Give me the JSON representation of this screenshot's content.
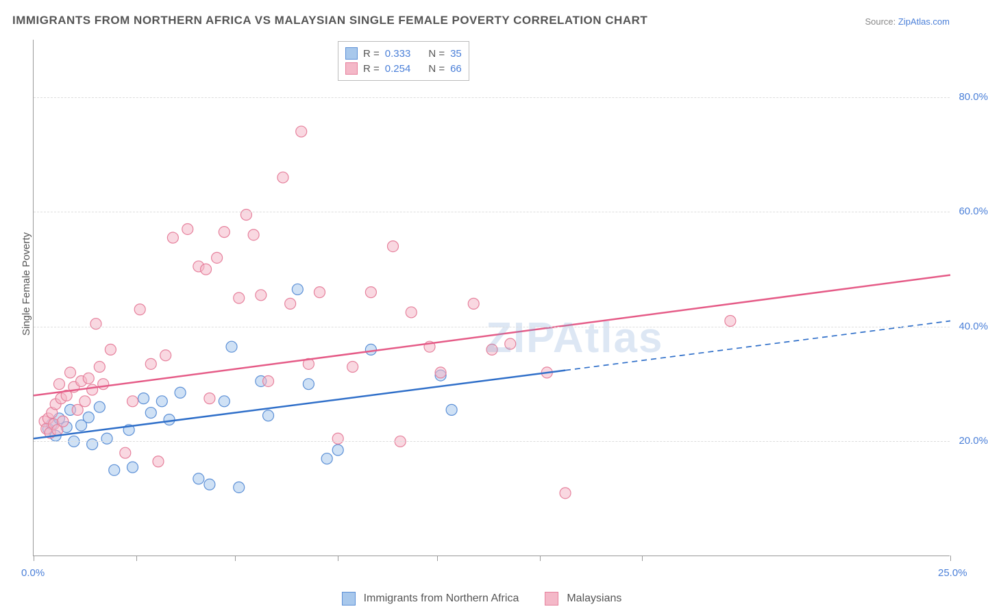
{
  "title": "IMMIGRANTS FROM NORTHERN AFRICA VS MALAYSIAN SINGLE FEMALE POVERTY CORRELATION CHART",
  "source_prefix": "Source: ",
  "source_name": "ZipAtlas.com",
  "y_axis_label": "Single Female Poverty",
  "watermark": "ZIPAtlas",
  "chart": {
    "type": "scatter",
    "xlim": [
      0,
      25
    ],
    "ylim": [
      0,
      90
    ],
    "x_ticks": [
      0,
      2.8,
      5.5,
      8.3,
      11,
      13.8,
      16.6,
      25
    ],
    "x_tick_labels_shown": {
      "0": "0.0%",
      "25": "25.0%"
    },
    "y_ticks": [
      20,
      40,
      60,
      80
    ],
    "y_tick_labels": {
      "20": "20.0%",
      "40": "40.0%",
      "60": "60.0%",
      "80": "80.0%"
    },
    "grid_color": "#dddddd",
    "axis_color": "#999999",
    "tick_label_color": "#4a7fd8",
    "background_color": "#ffffff",
    "marker_radius": 8,
    "marker_opacity": 0.55,
    "series": [
      {
        "id": "northern_africa",
        "label": "Immigrants from Northern Africa",
        "color_fill": "#a8c8ec",
        "color_stroke": "#5b8fd6",
        "R": 0.333,
        "N": 35,
        "trend": {
          "x1": 0,
          "y1": 20.5,
          "x2": 25,
          "y2": 41,
          "solid_until_x": 14.5,
          "color": "#2f6fc9",
          "width": 2.5
        },
        "points": [
          [
            0.4,
            22.2
          ],
          [
            0.5,
            23.0
          ],
          [
            0.6,
            21.0
          ],
          [
            0.7,
            24.0
          ],
          [
            0.9,
            22.5
          ],
          [
            1.0,
            25.5
          ],
          [
            1.1,
            20.0
          ],
          [
            1.3,
            22.8
          ],
          [
            1.5,
            24.2
          ],
          [
            1.6,
            19.5
          ],
          [
            1.8,
            26.0
          ],
          [
            2.0,
            20.5
          ],
          [
            2.2,
            15.0
          ],
          [
            2.6,
            22.0
          ],
          [
            2.7,
            15.5
          ],
          [
            3.0,
            27.5
          ],
          [
            3.2,
            25.0
          ],
          [
            3.5,
            27.0
          ],
          [
            3.7,
            23.8
          ],
          [
            4.0,
            28.5
          ],
          [
            4.5,
            13.5
          ],
          [
            4.8,
            12.5
          ],
          [
            5.2,
            27.0
          ],
          [
            5.4,
            36.5
          ],
          [
            5.6,
            12.0
          ],
          [
            6.2,
            30.5
          ],
          [
            6.4,
            24.5
          ],
          [
            7.2,
            46.5
          ],
          [
            7.5,
            30.0
          ],
          [
            8.0,
            17.0
          ],
          [
            8.3,
            18.5
          ],
          [
            9.2,
            36.0
          ],
          [
            11.1,
            31.5
          ],
          [
            11.4,
            25.5
          ]
        ]
      },
      {
        "id": "malaysians",
        "label": "Malaysians",
        "color_fill": "#f4b8c8",
        "color_stroke": "#e6809c",
        "R": 0.254,
        "N": 66,
        "trend": {
          "x1": 0,
          "y1": 28,
          "x2": 25,
          "y2": 49,
          "solid_until_x": 25,
          "color": "#e55b87",
          "width": 2.5
        },
        "points": [
          [
            0.3,
            23.5
          ],
          [
            0.35,
            22.2
          ],
          [
            0.4,
            24.0
          ],
          [
            0.45,
            21.5
          ],
          [
            0.5,
            25.0
          ],
          [
            0.55,
            23.0
          ],
          [
            0.6,
            26.5
          ],
          [
            0.65,
            22.0
          ],
          [
            0.7,
            30.0
          ],
          [
            0.75,
            27.5
          ],
          [
            0.8,
            23.5
          ],
          [
            0.9,
            28.0
          ],
          [
            1.0,
            32.0
          ],
          [
            1.1,
            29.5
          ],
          [
            1.2,
            25.5
          ],
          [
            1.3,
            30.5
          ],
          [
            1.4,
            27.0
          ],
          [
            1.5,
            31.0
          ],
          [
            1.6,
            29.0
          ],
          [
            1.7,
            40.5
          ],
          [
            1.8,
            33.0
          ],
          [
            1.9,
            30.0
          ],
          [
            2.1,
            36.0
          ],
          [
            2.5,
            18.0
          ],
          [
            2.7,
            27.0
          ],
          [
            2.9,
            43.0
          ],
          [
            3.2,
            33.5
          ],
          [
            3.4,
            16.5
          ],
          [
            3.6,
            35.0
          ],
          [
            3.8,
            55.5
          ],
          [
            4.2,
            57.0
          ],
          [
            4.5,
            50.5
          ],
          [
            4.7,
            50.0
          ],
          [
            4.8,
            27.5
          ],
          [
            5.0,
            52.0
          ],
          [
            5.2,
            56.5
          ],
          [
            5.6,
            45.0
          ],
          [
            5.8,
            59.5
          ],
          [
            6.0,
            56.0
          ],
          [
            6.2,
            45.5
          ],
          [
            6.4,
            30.5
          ],
          [
            6.8,
            66.0
          ],
          [
            7.0,
            44.0
          ],
          [
            7.3,
            74.0
          ],
          [
            7.5,
            33.5
          ],
          [
            7.8,
            46.0
          ],
          [
            8.3,
            20.5
          ],
          [
            8.7,
            33.0
          ],
          [
            9.2,
            46.0
          ],
          [
            9.8,
            54.0
          ],
          [
            10.0,
            20.0
          ],
          [
            10.3,
            42.5
          ],
          [
            10.8,
            36.5
          ],
          [
            11.1,
            32.0
          ],
          [
            12.0,
            44.0
          ],
          [
            12.5,
            36.0
          ],
          [
            13.0,
            37.0
          ],
          [
            14.0,
            32.0
          ],
          [
            14.5,
            11.0
          ],
          [
            19.0,
            41.0
          ]
        ]
      }
    ]
  },
  "legend_box": {
    "rows": [
      {
        "swatch_fill": "#a8c8ec",
        "swatch_stroke": "#5b8fd6",
        "r_label": "R =",
        "r_val": "0.333",
        "n_label": "N =",
        "n_val": "35"
      },
      {
        "swatch_fill": "#f4b8c8",
        "swatch_stroke": "#e6809c",
        "r_label": "R =",
        "r_val": "0.254",
        "n_label": "N =",
        "n_val": "66"
      }
    ]
  }
}
